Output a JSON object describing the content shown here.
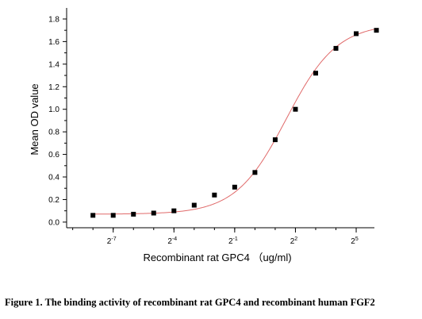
{
  "chart_data": {
    "type": "scatter",
    "xlabel": "Recombinant rat GPC4 （ug/ml)",
    "ylabel": "Mean OD value",
    "xscale": "log2",
    "xlim": [
      -9.3,
      5.9
    ],
    "ylim": [
      -0.05,
      1.87
    ],
    "x_ticks": [
      {
        "value": -7,
        "base": "2",
        "exp": "-7"
      },
      {
        "value": -4,
        "base": "2",
        "exp": "-4"
      },
      {
        "value": -1,
        "base": "2",
        "exp": "-1"
      },
      {
        "value": 2,
        "base": "2",
        "exp": "2"
      },
      {
        "value": 5,
        "base": "2",
        "exp": "5"
      }
    ],
    "y_ticks": [
      "0.0",
      "0.2",
      "0.4",
      "0.6",
      "0.8",
      "1.0",
      "1.2",
      "1.4",
      "1.6",
      "1.8"
    ],
    "points": {
      "log2_x": [
        -8.0,
        -7.0,
        -6.0,
        -5.0,
        -4.0,
        -3.0,
        -2.0,
        -1.0,
        0.0,
        1.0,
        2.0,
        3.0,
        4.0,
        5.0,
        6.0
      ],
      "y": [
        0.06,
        0.06,
        0.07,
        0.08,
        0.1,
        0.15,
        0.24,
        0.31,
        0.44,
        0.73,
        1.0,
        1.32,
        1.54,
        1.67,
        1.7
      ]
    },
    "fit_curve": {
      "type": "logistic",
      "bottom": 0.07,
      "top": 1.76,
      "mid_log2_x": 1.55,
      "slope": 0.8
    },
    "colors": {
      "points": "#000000",
      "fit": "#e06a6a",
      "axes": "#000000"
    },
    "grid": false,
    "legend": "none"
  },
  "caption": "Figure 1. The binding activity of recombinant rat GPC4 and recombinant human FGF2"
}
